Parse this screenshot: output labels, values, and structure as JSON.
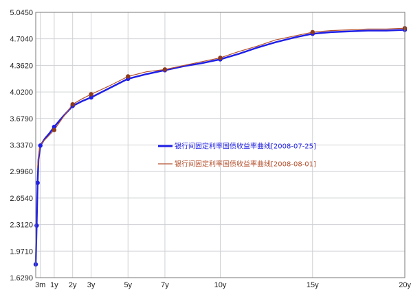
{
  "chart_data": {
    "type": "line",
    "xlabel": "",
    "ylabel": "",
    "title": "",
    "y_ticks": [
      "5.0450",
      "4.7040",
      "4.3620",
      "4.0200",
      "3.6790",
      "3.3370",
      "2.9960",
      "2.6540",
      "2.3120",
      "1.9710",
      "1.6290"
    ],
    "x_ticks": [
      {
        "label": "3m",
        "x": 0.25
      },
      {
        "label": "1y",
        "x": 1
      },
      {
        "label": "2y",
        "x": 2
      },
      {
        "label": "3y",
        "x": 3
      },
      {
        "label": "5y",
        "x": 5
      },
      {
        "label": "7y",
        "x": 7
      },
      {
        "label": "10y",
        "x": 10
      },
      {
        "label": "15y",
        "x": 15
      },
      {
        "label": "20y",
        "x": 20
      }
    ],
    "xlim": [
      0,
      20
    ],
    "ylim": [
      1.629,
      5.045
    ],
    "grid": true,
    "legend_position": "center-right",
    "series": [
      {
        "name": "银行间固定利率国债收益率曲线[2008-07-25]",
        "color": "#1f1fe6",
        "width": 2.5,
        "points": [
          [
            0,
            1.8
          ],
          [
            0.05,
            2.3
          ],
          [
            0.1,
            2.85
          ],
          [
            0.15,
            3.15
          ],
          [
            0.25,
            3.33
          ],
          [
            0.5,
            3.42
          ],
          [
            0.75,
            3.49
          ],
          [
            1,
            3.57
          ],
          [
            1.5,
            3.71
          ],
          [
            2,
            3.84
          ],
          [
            2.5,
            3.9
          ],
          [
            3,
            3.95
          ],
          [
            4,
            4.07
          ],
          [
            5,
            4.19
          ],
          [
            6,
            4.25
          ],
          [
            7,
            4.3
          ],
          [
            8,
            4.35
          ],
          [
            9,
            4.39
          ],
          [
            10,
            4.44
          ],
          [
            11,
            4.51
          ],
          [
            12,
            4.59
          ],
          [
            13,
            4.66
          ],
          [
            14,
            4.72
          ],
          [
            15,
            4.77
          ],
          [
            16,
            4.79
          ],
          [
            17,
            4.8
          ],
          [
            18,
            4.81
          ],
          [
            19,
            4.81
          ],
          [
            20,
            4.82
          ]
        ],
        "markers": [
          [
            0,
            1.8
          ],
          [
            0.05,
            2.3
          ],
          [
            0.1,
            2.85
          ],
          [
            0.25,
            3.33
          ],
          [
            1,
            3.57
          ],
          [
            2,
            3.84
          ],
          [
            3,
            3.95
          ],
          [
            5,
            4.19
          ],
          [
            7,
            4.3
          ],
          [
            10,
            4.44
          ],
          [
            15,
            4.77
          ],
          [
            20,
            4.82
          ]
        ]
      },
      {
        "name": "银行间固定利率国债收益率曲线[2008-08-01]",
        "color": "#b4502d",
        "width": 1.2,
        "points": [
          [
            0.1,
            3.05
          ],
          [
            0.2,
            3.3
          ],
          [
            0.35,
            3.37
          ],
          [
            0.6,
            3.43
          ],
          [
            1,
            3.53
          ],
          [
            1.5,
            3.7
          ],
          [
            2,
            3.86
          ],
          [
            2.5,
            3.93
          ],
          [
            3,
            3.99
          ],
          [
            4,
            4.1
          ],
          [
            5,
            4.22
          ],
          [
            6,
            4.28
          ],
          [
            7,
            4.31
          ],
          [
            8,
            4.36
          ],
          [
            9,
            4.41
          ],
          [
            10,
            4.46
          ],
          [
            11,
            4.54
          ],
          [
            12,
            4.61
          ],
          [
            13,
            4.69
          ],
          [
            14,
            4.74
          ],
          [
            15,
            4.79
          ],
          [
            16,
            4.81
          ],
          [
            17,
            4.82
          ],
          [
            18,
            4.83
          ],
          [
            19,
            4.83
          ],
          [
            20,
            4.84
          ]
        ],
        "markers": [
          [
            1,
            3.53
          ],
          [
            2,
            3.86
          ],
          [
            3,
            3.99
          ],
          [
            5,
            4.22
          ],
          [
            7,
            4.31
          ],
          [
            10,
            4.46
          ],
          [
            15,
            4.79
          ],
          [
            20,
            4.84
          ]
        ]
      }
    ]
  },
  "colors": {
    "frame": "#7a7a7a",
    "grid": "#cfd0d5",
    "marker": "#8b3a1e"
  }
}
